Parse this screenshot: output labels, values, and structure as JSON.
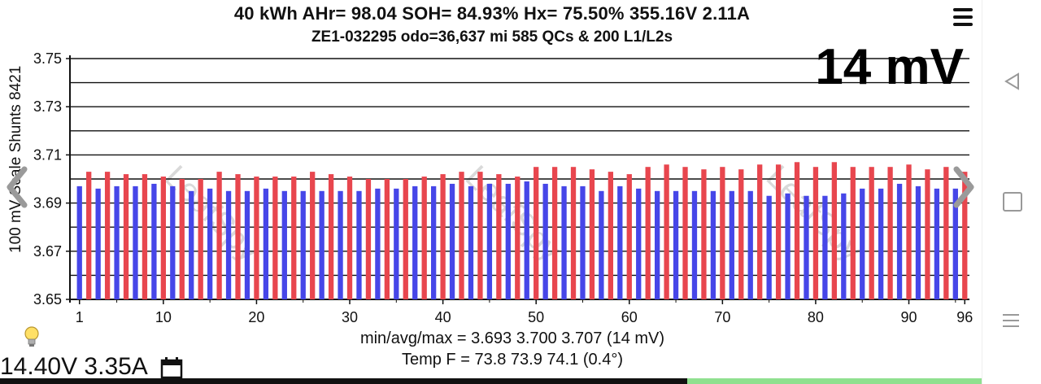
{
  "header": {
    "line1": "40 kWh  AHr= 98.04  SOH= 84.93%   Hx= 75.50%   355.16V 2.11A",
    "line2": "ZE1-032295 odo=36,637 mi  585 QCs & 200 L1/L2s",
    "big_label": "14 mV"
  },
  "watermark": "LeafSpy",
  "footer": {
    "stats": "min/avg/max = 3.693 3.700 3.707  (14 mV)",
    "temp": "Temp F = 73.8  73.9  74.1  (0.4°)",
    "voltage": "14.40V 3.35A"
  },
  "colors": {
    "odd": "#4646e8",
    "even": "#e8464e"
  },
  "chart_data": {
    "type": "bar",
    "ylabel": "100 mV Scale  Shunts 8421",
    "ylim": [
      3.65,
      3.75
    ],
    "ytick_labels": [
      "3.75",
      "3.73",
      "3.71",
      "3.69",
      "3.67",
      "3.65"
    ],
    "xtick_labels": [
      "1",
      "10",
      "20",
      "30",
      "40",
      "50",
      "60",
      "70",
      "80",
      "90",
      "96"
    ],
    "xticks": [
      1,
      10,
      20,
      30,
      40,
      50,
      60,
      70,
      80,
      90,
      96
    ],
    "categories": [
      1,
      2,
      3,
      4,
      5,
      6,
      7,
      8,
      9,
      10,
      11,
      12,
      13,
      14,
      15,
      16,
      17,
      18,
      19,
      20,
      21,
      22,
      23,
      24,
      25,
      26,
      27,
      28,
      29,
      30,
      31,
      32,
      33,
      34,
      35,
      36,
      37,
      38,
      39,
      40,
      41,
      42,
      43,
      44,
      45,
      46,
      47,
      48,
      49,
      50,
      51,
      52,
      53,
      54,
      55,
      56,
      57,
      58,
      59,
      60,
      61,
      62,
      63,
      64,
      65,
      66,
      67,
      68,
      69,
      70,
      71,
      72,
      73,
      74,
      75,
      76,
      77,
      78,
      79,
      80,
      81,
      82,
      83,
      84,
      85,
      86,
      87,
      88,
      89,
      90,
      91,
      92,
      93,
      94,
      95,
      96
    ],
    "values": [
      3.697,
      3.703,
      3.696,
      3.703,
      3.697,
      3.702,
      3.697,
      3.702,
      3.698,
      3.701,
      3.697,
      3.7,
      3.695,
      3.7,
      3.696,
      3.703,
      3.695,
      3.702,
      3.695,
      3.701,
      3.696,
      3.701,
      3.695,
      3.701,
      3.695,
      3.703,
      3.695,
      3.702,
      3.695,
      3.701,
      3.695,
      3.7,
      3.696,
      3.7,
      3.696,
      3.7,
      3.697,
      3.701,
      3.697,
      3.702,
      3.698,
      3.703,
      3.697,
      3.703,
      3.698,
      3.702,
      3.698,
      3.701,
      3.699,
      3.705,
      3.698,
      3.705,
      3.697,
      3.705,
      3.697,
      3.704,
      3.695,
      3.703,
      3.697,
      3.702,
      3.696,
      3.705,
      3.695,
      3.706,
      3.695,
      3.705,
      3.695,
      3.704,
      3.695,
      3.705,
      3.695,
      3.704,
      3.695,
      3.706,
      3.693,
      3.706,
      3.694,
      3.707,
      3.693,
      3.705,
      3.693,
      3.707,
      3.694,
      3.705,
      3.696,
      3.705,
      3.696,
      3.705,
      3.698,
      3.706,
      3.697,
      3.704,
      3.696,
      3.705,
      3.696,
      3.703
    ],
    "grid": true
  },
  "icons": {
    "bulb": "lightbulb-icon",
    "calendar": "calendar-icon",
    "menu": "hamburger-menu-icon",
    "back": "nav-back-icon",
    "home": "nav-home-icon",
    "recent": "nav-recent-icon"
  }
}
